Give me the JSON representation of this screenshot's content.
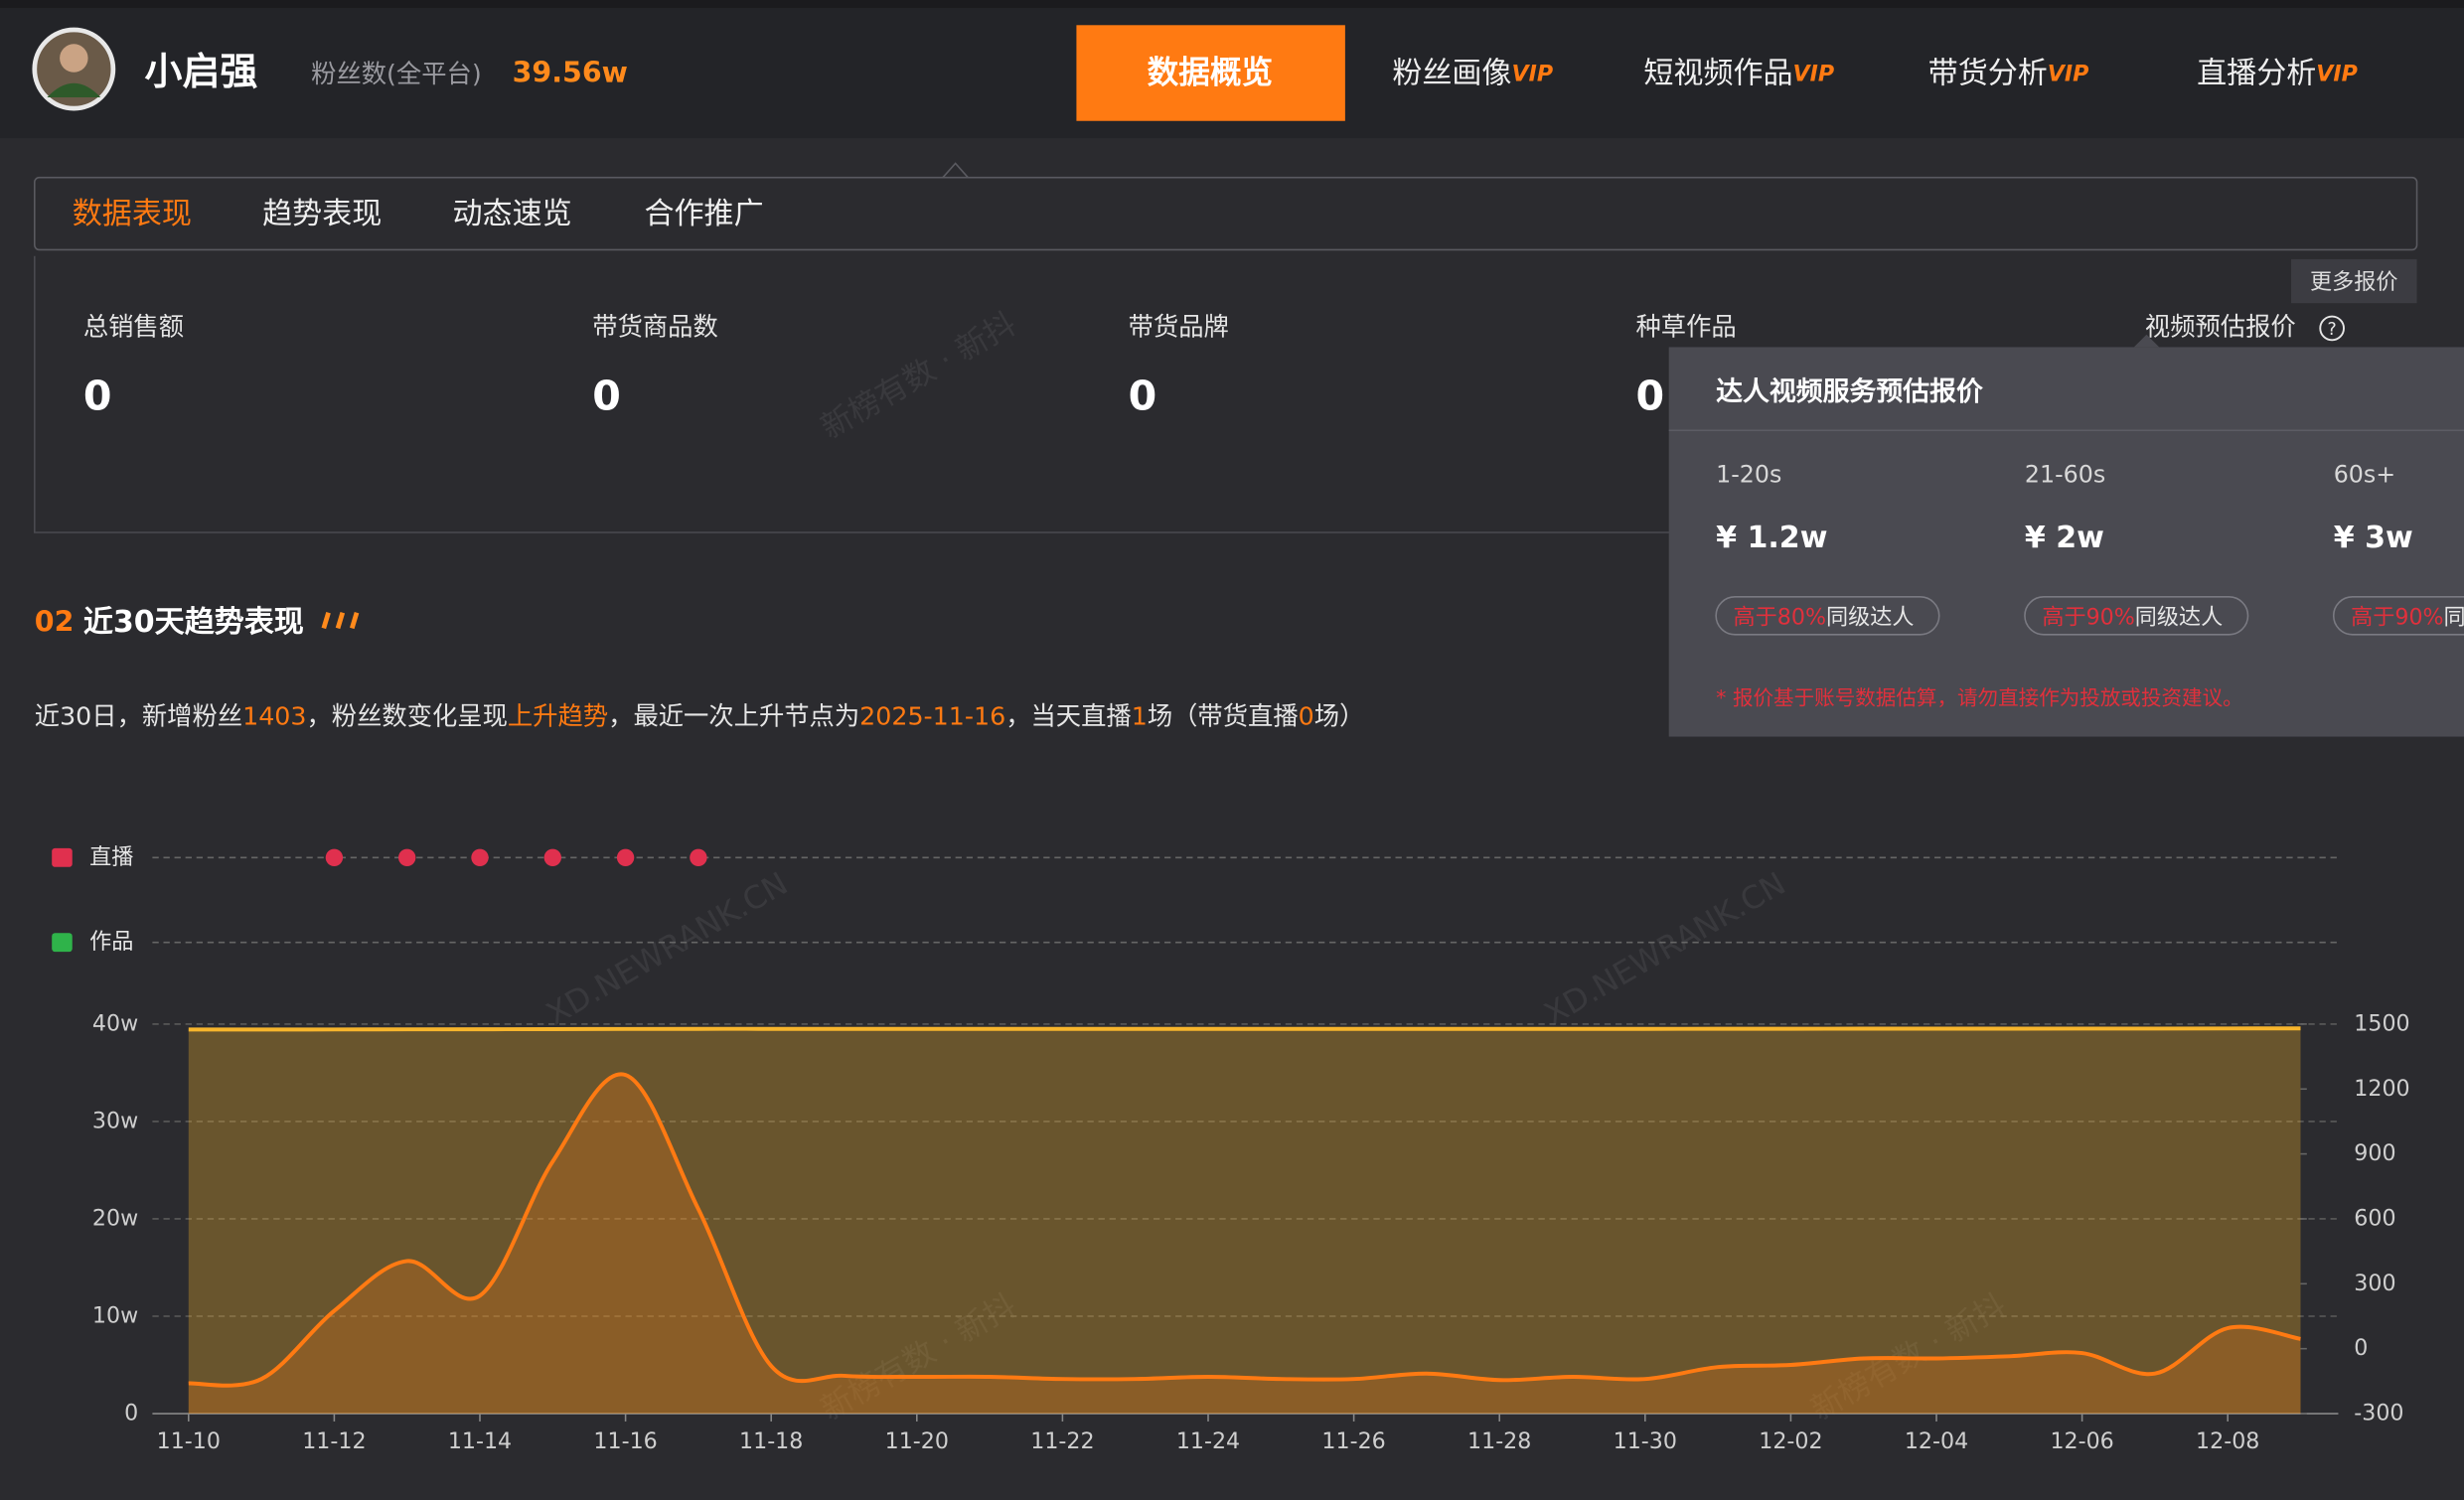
{
  "header": {
    "name": "小启强",
    "fans_label": "粉丝数(全平台)",
    "fans_value": "39.56w",
    "nav": [
      {
        "text": "数据概览"
      },
      {
        "text": "粉丝画像",
        "badge": "VIP"
      },
      {
        "text": "短视频作品",
        "badge": "VIP"
      },
      {
        "text": "带货分析",
        "badge": "VIP"
      },
      {
        "text": "直播分析",
        "badge": "VIP"
      }
    ]
  },
  "tabs": [
    "数据表现",
    "趋势表现",
    "动态速览",
    "合作推广"
  ],
  "more_price": "更多报价",
  "metrics": [
    {
      "label": "总销售额",
      "value": 0
    },
    {
      "label": "带货商品数",
      "value": 0
    },
    {
      "label": "带货品牌",
      "value": 0
    },
    {
      "label": "种草作品",
      "value": 0
    }
  ],
  "video_price_label": "视频预估报价",
  "price_popup": {
    "title": "达人视频服务预估报价",
    "items": [
      {
        "duration": "1-20s",
        "price": "¥ 1.2w",
        "rank": "高于80%",
        "rank_suffix": "同级达人"
      },
      {
        "duration": "21-60s",
        "price": "¥ 2w",
        "rank": "高于90%",
        "rank_suffix": "同级达人"
      },
      {
        "duration": "60s+",
        "price": "¥ 3w",
        "rank": "高于90%",
        "rank_suffix": "同级达人"
      }
    ],
    "note": "* 报价基于账号数据估算，请勿直接作为投放或投资建议。"
  },
  "section": {
    "number": "02",
    "title": "近30天趋势表现"
  },
  "summary": [
    {
      "text": "近30日，新增粉丝"
    },
    {
      "text": "1403",
      "highlight": true
    },
    {
      "text": "，粉丝数变化呈现"
    },
    {
      "text": "上升趋势",
      "highlight": true
    },
    {
      "text": "，最近一次上升节点为"
    },
    {
      "text": "2025-11-16",
      "highlight": true
    },
    {
      "text": "，当天直播"
    },
    {
      "text": "1",
      "highlight": true
    },
    {
      "text": "场（带货直播"
    },
    {
      "text": "0",
      "highlight": true
    },
    {
      "text": "场）"
    }
  ],
  "watermarks": [
    "新榜有数 · 新抖",
    "XD.NEWRANK.CN",
    "XD.NEWRANK.CN",
    "新榜有数 · 新抖",
    "新榜有数 · 新抖"
  ],
  "chart_data": {
    "type": "line",
    "categories": [
      "11-10",
      null,
      "11-12",
      null,
      "11-14",
      null,
      "11-16",
      null,
      "11-18",
      null,
      "11-20",
      null,
      "11-22",
      null,
      "11-24",
      null,
      "11-26",
      null,
      "11-28",
      null,
      "11-30",
      null,
      "12-02",
      null,
      "12-04",
      null,
      "12-06",
      null,
      "12-08",
      null
    ],
    "series": [
      {
        "color": "#f7b52c",
        "values": [
          39.44,
          39.44,
          39.45,
          39.46,
          39.47,
          39.48,
          39.5,
          39.51,
          39.51,
          39.51,
          39.51,
          39.51,
          39.51,
          39.51,
          39.51,
          39.51,
          39.51,
          39.51,
          39.51,
          39.51,
          39.51,
          39.52,
          39.52,
          39.53,
          39.53,
          39.53,
          39.54,
          39.54,
          39.55,
          39.56
        ]
      },
      {
        "color": "#ff7a12",
        "axis": "y2",
        "values": [
          -160,
          -140,
          175,
          405,
          245,
          865,
          1265,
          645,
          -80,
          -125,
          -130,
          -130,
          -140,
          -140,
          -130,
          -140,
          -140,
          -115,
          -145,
          -130,
          -140,
          -85,
          -75,
          -45,
          -45,
          -35,
          -20,
          -115,
          95,
          45
        ]
      }
    ],
    "event_rows": [
      {
        "name": "直播",
        "color": "#e0304e",
        "values": [
          0,
          0,
          1,
          1,
          1,
          1,
          1,
          1,
          0,
          0,
          0,
          0,
          0,
          0,
          0,
          0,
          0,
          0,
          0,
          0,
          0,
          0,
          0,
          0,
          0,
          0,
          0,
          0,
          0,
          0
        ]
      },
      {
        "name": "作品",
        "color": "#2fb34a",
        "values": [
          0,
          0,
          0,
          0,
          0,
          0,
          0,
          0,
          0,
          0,
          0,
          0,
          0,
          0,
          0,
          0,
          0,
          0,
          0,
          0,
          0,
          0,
          0,
          0,
          0,
          0,
          0,
          0,
          0,
          0
        ]
      }
    ],
    "ylim": [
      0,
      40
    ],
    "yticks": [
      0,
      {
        "value": 10,
        "label": "10w"
      },
      {
        "value": 20,
        "label": "20w"
      },
      {
        "value": 30,
        "label": "30w"
      },
      {
        "value": 40,
        "label": "40w"
      }
    ],
    "y2lim": [
      -300,
      1500
    ],
    "y2ticks": [
      -300,
      0,
      300,
      600,
      900,
      1200,
      1500
    ],
    "grid": true
  }
}
